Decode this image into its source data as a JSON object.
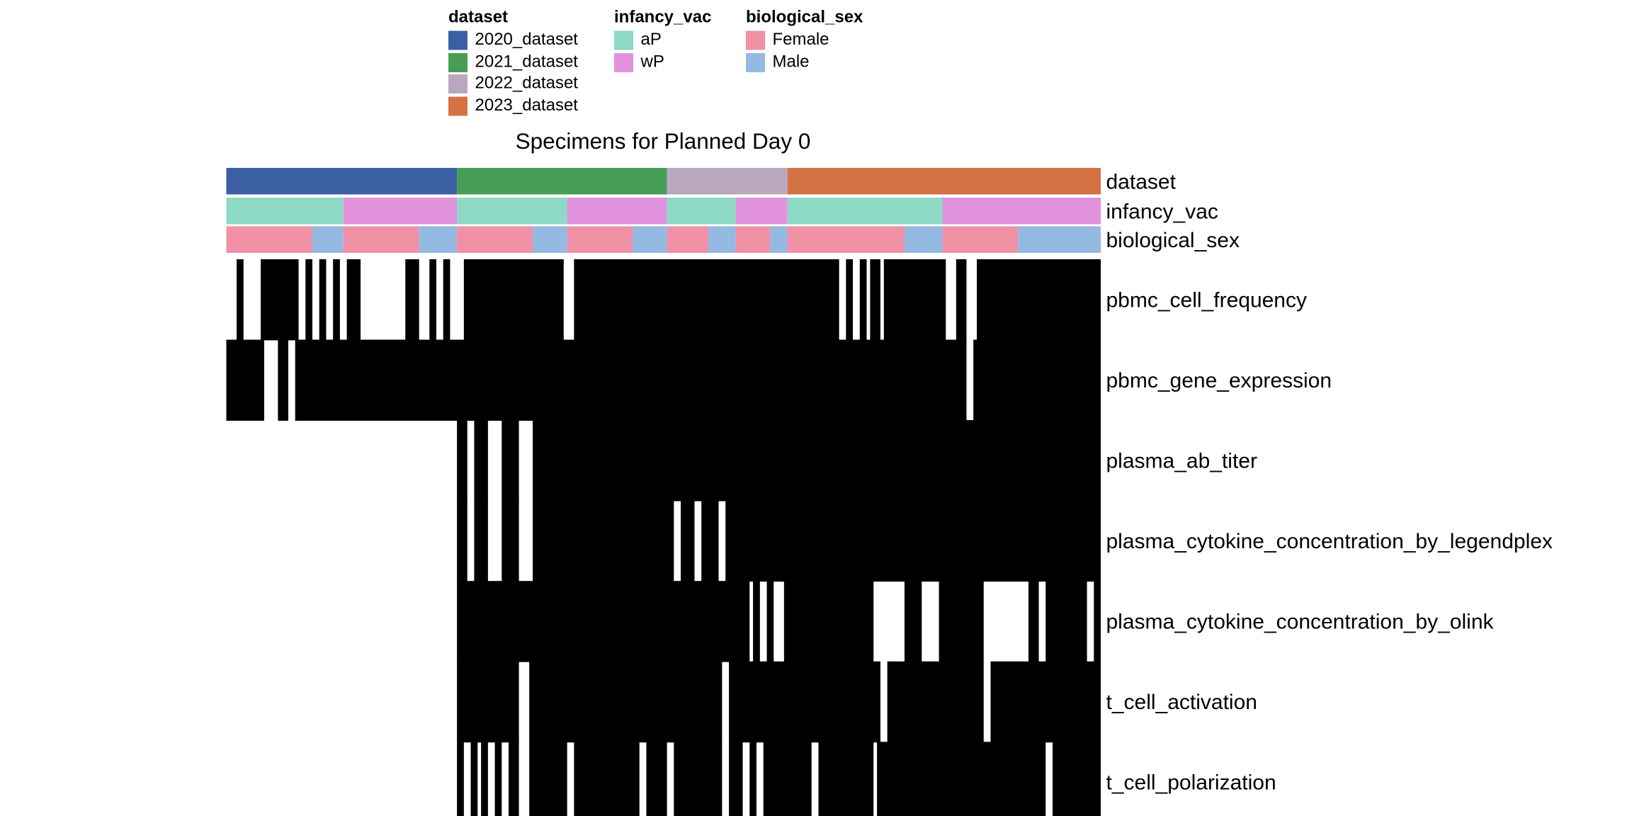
{
  "chart_data": {
    "type": "heatmap",
    "title": "Specimens for Planned Day 0",
    "n_columns": 127,
    "legends": [
      {
        "key": "dataset",
        "title": "dataset",
        "entries": [
          {
            "label": "2020_dataset",
            "color": "#3C5FA3"
          },
          {
            "label": "2021_dataset",
            "color": "#489E57"
          },
          {
            "label": "2022_dataset",
            "color": "#B9A7BF"
          },
          {
            "label": "2023_dataset",
            "color": "#D47245"
          }
        ]
      },
      {
        "key": "infancy_vac",
        "title": "infancy_vac",
        "entries": [
          {
            "label": "aP",
            "color": "#8DD9C4"
          },
          {
            "label": "wP",
            "color": "#E092DD"
          }
        ]
      },
      {
        "key": "biological_sex",
        "title": "biological_sex",
        "entries": [
          {
            "label": "Female",
            "color": "#F091A6"
          },
          {
            "label": "Male",
            "color": "#94B9E3"
          }
        ]
      }
    ],
    "annotations": [
      {
        "name": "dataset",
        "segments": [
          [
            "2020_dataset",
            0,
            33.5
          ],
          [
            "2021_dataset",
            33.5,
            64
          ],
          [
            "2022_dataset",
            64,
            81.5
          ],
          [
            "2023_dataset",
            81.5,
            127
          ]
        ]
      },
      {
        "name": "infancy_vac",
        "segments": [
          [
            "aP",
            0,
            17
          ],
          [
            "wP",
            17,
            33.5
          ],
          [
            "aP",
            33.5,
            49.5
          ],
          [
            "wP",
            49.5,
            64
          ],
          [
            "aP",
            64,
            74
          ],
          [
            "wP",
            74,
            81.5
          ],
          [
            "aP",
            81.5,
            104
          ],
          [
            "wP",
            104,
            127
          ]
        ]
      },
      {
        "name": "biological_sex",
        "segments": [
          [
            "Female",
            0,
            12.5
          ],
          [
            "Male",
            12.5,
            17
          ],
          [
            "Female",
            17,
            28
          ],
          [
            "Male",
            28,
            33.5
          ],
          [
            "Female",
            33.5,
            44.5
          ],
          [
            "Male",
            44.5,
            49.5
          ],
          [
            "Female",
            49.5,
            59
          ],
          [
            "Male",
            59,
            64
          ],
          [
            "Female",
            64,
            70
          ],
          [
            "Male",
            70,
            74
          ],
          [
            "Female",
            74,
            79
          ],
          [
            "Male",
            79,
            81.5
          ],
          [
            "Female",
            81.5,
            98.5
          ],
          [
            "Male",
            98.5,
            104
          ],
          [
            "Female",
            104,
            115
          ],
          [
            "Male",
            115,
            127
          ]
        ]
      }
    ],
    "rows": [
      {
        "name": "pbmc_cell_frequency",
        "absent": [
          [
            0,
            1.5
          ],
          [
            2.5,
            5
          ],
          [
            10.5,
            11.5
          ],
          [
            12.5,
            13.5
          ],
          [
            14.5,
            15.5
          ],
          [
            16.5,
            17.5
          ],
          [
            19.5,
            26
          ],
          [
            28,
            29.5
          ],
          [
            30.5,
            31.5
          ],
          [
            32.5,
            34.5
          ],
          [
            49,
            50.5
          ],
          [
            89,
            90
          ],
          [
            91,
            92
          ],
          [
            93,
            93.5
          ],
          [
            95,
            95.5
          ],
          [
            104.5,
            106
          ],
          [
            107.5,
            109
          ]
        ]
      },
      {
        "name": "pbmc_gene_expression",
        "absent": [
          [
            5.5,
            7.5
          ],
          [
            9,
            10
          ],
          [
            107.5,
            108.5
          ]
        ]
      },
      {
        "name": "plasma_ab_titer",
        "absent": [
          [
            0,
            33.5
          ],
          [
            35,
            36
          ],
          [
            38,
            40
          ],
          [
            42.5,
            44.5
          ]
        ]
      },
      {
        "name": "plasma_cytokine_concentration_by_legendplex",
        "absent": [
          [
            0,
            33.5
          ],
          [
            35,
            36
          ],
          [
            38,
            40
          ],
          [
            42.5,
            44.5
          ],
          [
            65,
            66
          ],
          [
            68,
            69
          ],
          [
            71.5,
            72.5
          ]
        ]
      },
      {
        "name": "plasma_cytokine_concentration_by_olink",
        "absent": [
          [
            0,
            33.5
          ],
          [
            76,
            76.5
          ],
          [
            77.5,
            78.5
          ],
          [
            79.5,
            81
          ],
          [
            94,
            98.5
          ],
          [
            101,
            103.5
          ],
          [
            110,
            116.5
          ],
          [
            118,
            119
          ],
          [
            125,
            126
          ]
        ]
      },
      {
        "name": "t_cell_activation",
        "absent": [
          [
            0,
            33.5
          ],
          [
            42.5,
            44
          ],
          [
            72,
            73
          ],
          [
            95,
            96
          ],
          [
            110,
            111
          ]
        ]
      },
      {
        "name": "t_cell_polarization",
        "absent": [
          [
            0,
            33.5
          ],
          [
            34.5,
            35.5
          ],
          [
            36.5,
            37
          ],
          [
            38,
            39
          ],
          [
            40,
            41
          ],
          [
            42.5,
            44
          ],
          [
            49.5,
            50.5
          ],
          [
            60,
            61
          ],
          [
            64,
            65
          ],
          [
            72,
            73
          ],
          [
            75,
            76
          ],
          [
            77,
            78
          ],
          [
            85,
            86
          ],
          [
            94,
            94.5
          ],
          [
            119,
            120
          ]
        ]
      }
    ]
  }
}
